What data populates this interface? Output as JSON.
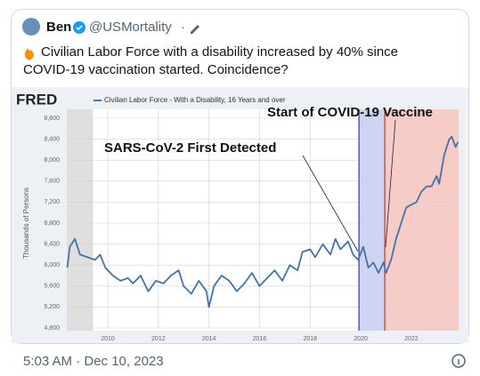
{
  "author": {
    "name": "Ben",
    "handle": "@USMortality",
    "separator": "·"
  },
  "text_lines": [
    "Civilian Labor Force with a disability increased by 40% since",
    "COVID-19 vaccination started. Coincidence?"
  ],
  "timestamp": "5:03 AM · Dec 10, 2023",
  "chart_data": {
    "type": "line",
    "source": "FRED",
    "y_label": "Thousands of Persons",
    "xlim": [
      2008.38,
      2023.87
    ],
    "xticks": [
      2010,
      2012,
      2014,
      2016,
      2018,
      2020,
      2022
    ],
    "ylim": [
      4800,
      8800
    ],
    "yticks": [
      {
        "value": 4800,
        "label": "4,800"
      },
      {
        "value": 5200,
        "label": "5,200"
      },
      {
        "value": 5600,
        "label": "5,600"
      },
      {
        "value": 6000,
        "label": "6,000"
      },
      {
        "value": 6400,
        "label": "6,400"
      },
      {
        "value": 6800,
        "label": "6,800"
      },
      {
        "value": 7200,
        "label": "7,200"
      },
      {
        "value": 7600,
        "label": "7,600"
      },
      {
        "value": 8000,
        "label": "8,000"
      },
      {
        "value": 8400,
        "label": "8,400"
      },
      {
        "value": 8800,
        "label": "8,800"
      }
    ],
    "grid": true,
    "regions": [
      {
        "start": 2008.38,
        "end": 2009.42,
        "color": "#d9d9d9"
      },
      {
        "start": 2019.93,
        "end": 2020.95,
        "color": "#c7cdf3"
      },
      {
        "start": 2020.95,
        "end": 2023.87,
        "color": "#f6c3bd"
      }
    ],
    "vlines": [
      {
        "x": 2019.93,
        "color": "#2b3fa0"
      },
      {
        "x": 2020.95,
        "color": "#c0392b"
      }
    ],
    "annotations": [
      "SARS-CoV-2 First Detected",
      "Start of COVID-19 Vaccine"
    ],
    "x": [
      2008.4,
      2008.5,
      2008.7,
      2008.9,
      2009.2,
      2009.5,
      2009.7,
      2009.9,
      2010.2,
      2010.5,
      2010.8,
      2011.0,
      2011.3,
      2011.6,
      2011.9,
      2012.2,
      2012.5,
      2012.8,
      2013.0,
      2013.3,
      2013.6,
      2013.9,
      2014.0,
      2014.2,
      2014.5,
      2014.8,
      2015.1,
      2015.4,
      2015.7,
      2016.0,
      2016.3,
      2016.6,
      2016.9,
      2017.2,
      2017.5,
      2017.7,
      2018.0,
      2018.2,
      2018.5,
      2018.8,
      2019.0,
      2019.2,
      2019.5,
      2019.7,
      2019.9,
      2020.1,
      2020.3,
      2020.5,
      2020.7,
      2020.9,
      2021.0,
      2021.2,
      2021.4,
      2021.6,
      2021.8,
      2022.0,
      2022.2,
      2022.4,
      2022.6,
      2022.8,
      2023.0,
      2023.1,
      2023.3,
      2023.5,
      2023.6,
      2023.75,
      2023.85
    ],
    "series": [
      {
        "name": "Civilian Labor Force - With a Disability, 16 Years and over",
        "color": "#4572a7",
        "values": [
          5950,
          6350,
          6500,
          6200,
          6150,
          6100,
          6200,
          5950,
          5800,
          5700,
          5750,
          5650,
          5800,
          5500,
          5700,
          5650,
          5800,
          5900,
          5600,
          5450,
          5700,
          5500,
          5200,
          5600,
          5800,
          5700,
          5500,
          5650,
          5850,
          5600,
          5750,
          5900,
          5700,
          6000,
          5900,
          6250,
          6300,
          6150,
          6400,
          6200,
          6500,
          6300,
          6450,
          6200,
          6100,
          6350,
          5950,
          6050,
          5850,
          6050,
          5850,
          6100,
          6500,
          6800,
          7100,
          7150,
          7200,
          7400,
          7500,
          7500,
          7700,
          7550,
          8100,
          8400,
          8450,
          8250,
          8350
        ]
      }
    ]
  }
}
